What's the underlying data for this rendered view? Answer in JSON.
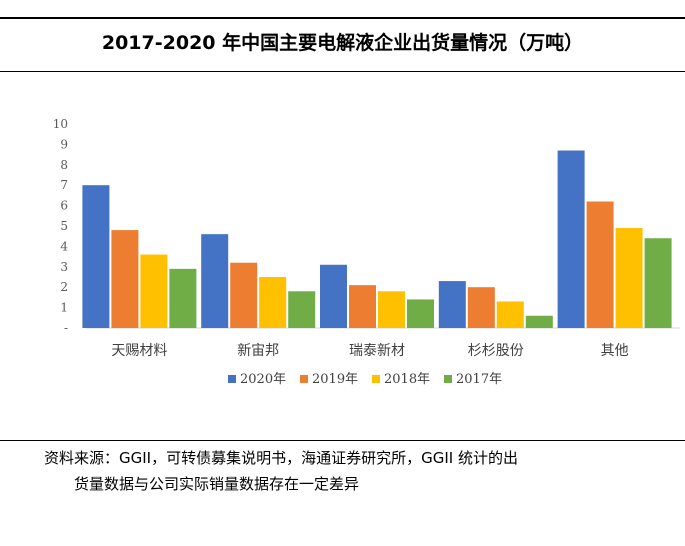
{
  "title": "2017-2020 年中国主要电解液企业出货量情况（万吨）",
  "note_line1": "资料来源：GGII，可转债募集说明书，海通证券研究所，GGII 统计的出",
  "note_line2": "货量数据与公司实际销量数据存在一定差异",
  "chart_data": {
    "type": "bar",
    "categories": [
      "天赐材料",
      "新宙邦",
      "瑞泰新材",
      "杉杉股份",
      "其他"
    ],
    "series": [
      {
        "name": "2020年",
        "color": "#4472C4",
        "values": [
          7.0,
          4.6,
          3.1,
          2.3,
          8.7
        ]
      },
      {
        "name": "2019年",
        "color": "#ED7D31",
        "values": [
          4.8,
          3.2,
          2.1,
          2.0,
          6.2
        ]
      },
      {
        "name": "2018年",
        "color": "#FFC000",
        "values": [
          3.6,
          2.5,
          1.8,
          1.3,
          4.9
        ]
      },
      {
        "name": "2017年",
        "color": "#70AD47",
        "values": [
          2.9,
          1.8,
          1.4,
          0.6,
          4.4
        ]
      }
    ],
    "ylim": [
      0,
      10
    ],
    "yticks": [
      "-",
      "1",
      "2",
      "3",
      "4",
      "5",
      "6",
      "7",
      "8",
      "9",
      "10"
    ],
    "legend": "bottom",
    "grid": false
  }
}
